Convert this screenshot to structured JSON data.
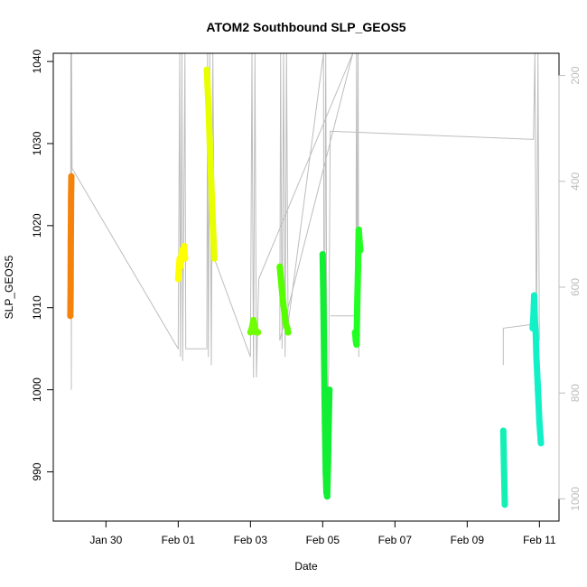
{
  "chart_data": {
    "type": "scatter",
    "title": "ATOM2 Southbound SLP_GEOS5",
    "xlabel": "Date",
    "ylabel": "SLP_GEOS5",
    "x_unit": "day",
    "xlim": [
      "2017-01-28T13:00",
      "2017-02-11T13:00"
    ],
    "ylim": [
      984,
      1041
    ],
    "x_ticks": [
      {
        "x": "2017-01-30",
        "label": "Jan 30"
      },
      {
        "x": "2017-02-01",
        "label": "Feb 01"
      },
      {
        "x": "2017-02-03",
        "label": "Feb 03"
      },
      {
        "x": "2017-02-05",
        "label": "Feb 05"
      },
      {
        "x": "2017-02-07",
        "label": "Feb 07"
      },
      {
        "x": "2017-02-09",
        "label": "Feb 09"
      },
      {
        "x": "2017-02-11",
        "label": "Feb 11"
      }
    ],
    "y_ticks": [
      990,
      1000,
      1010,
      1020,
      1030,
      1040
    ],
    "right_axis": {
      "color": "#bdbdbd",
      "ylim": [
        1042,
        158
      ],
      "ticks": [
        200,
        400,
        600,
        800,
        1000
      ]
    },
    "background_line": {
      "color": "#bdbdbd",
      "points": [
        [
          "2017-01-29T00:35",
          1010
        ],
        [
          "2017-01-29T00:40",
          1041
        ],
        [
          "2017-01-29T00:50",
          1036
        ],
        [
          "2017-01-29T01:00",
          1000
        ],
        [
          "2017-01-29T01:10",
          1041
        ],
        [
          "2017-01-29T01:30",
          1027
        ],
        [
          "2017-02-01T00:00",
          1005
        ],
        [
          "2017-02-01T01:00",
          1041
        ],
        [
          "2017-02-01T01:30",
          1004
        ],
        [
          "2017-02-01T02:30",
          1041
        ],
        [
          "2017-02-01T03:00",
          1003.5
        ],
        [
          "2017-02-01T04:30",
          1041
        ],
        [
          "2017-02-01T05:00",
          1005
        ],
        [
          "2017-02-01T19:00",
          1005
        ],
        [
          "2017-02-01T19:30",
          1041
        ],
        [
          "2017-02-01T20:00",
          1004
        ],
        [
          "2017-02-01T21:00",
          1041
        ],
        [
          "2017-02-01T22:00",
          1003
        ],
        [
          "2017-02-01T23:00",
          1041
        ],
        [
          "2017-02-02T00:00",
          1016
        ],
        [
          "2017-02-03T00:00",
          1004
        ],
        [
          "2017-02-03T01:00",
          1041
        ],
        [
          "2017-02-03T02:00",
          1001.5
        ],
        [
          "2017-02-03T03:00",
          1041
        ],
        [
          "2017-02-03T04:00",
          1001.5
        ],
        [
          "2017-02-03T05:30",
          1013.5
        ],
        [
          "2017-02-05T20:00",
          1041
        ],
        [
          "2017-02-03T19:30",
          1006
        ],
        [
          "2017-02-03T20:00",
          1041
        ],
        [
          "2017-02-03T21:00",
          1005
        ],
        [
          "2017-02-03T22:00",
          1041
        ],
        [
          "2017-02-03T23:00",
          1004
        ],
        [
          "2017-02-04T00:00",
          1041
        ],
        [
          "2017-02-04T01:00",
          1008
        ],
        [
          "2017-02-05T00:30",
          1041
        ],
        [
          "2017-02-05T01:00",
          995
        ],
        [
          "2017-02-05T02:00",
          1041
        ],
        [
          "2017-02-05T03:00",
          993
        ],
        [
          "2017-02-05T04:00",
          1003
        ],
        [
          "2017-02-05T05:00",
          1031.5
        ],
        [
          "2017-02-10T20:00",
          1030.5
        ],
        [
          "2017-02-10T21:00",
          1041
        ],
        [
          "2017-02-10T22:00",
          1005
        ],
        [
          "2017-02-10T23:00",
          1041
        ],
        [
          "2017-02-11T00:00",
          1006
        ]
      ],
      "extra_segments": [
        [
          [
            "2017-02-05T05:00",
            1009
          ],
          [
            "2017-02-05T22:00",
            1009
          ],
          [
            "2017-02-05T22:30",
            1041
          ],
          [
            "2017-02-05T23:00",
            1006
          ],
          [
            "2017-02-05T23:30",
            1041
          ],
          [
            "2017-02-06T00:00",
            1004
          ]
        ],
        [
          [
            "2017-02-10T00:00",
            1003
          ],
          [
            "2017-02-10T00:00",
            1007.5
          ],
          [
            "2017-02-10T21:00",
            1008
          ]
        ]
      ]
    },
    "series": [
      {
        "color": "#f5820a",
        "points": [
          [
            "2017-01-29T00:20",
            1009
          ],
          [
            "2017-01-29T00:25",
            1010
          ],
          [
            "2017-01-29T00:30",
            1012
          ],
          [
            "2017-01-29T00:35",
            1015
          ],
          [
            "2017-01-29T00:40",
            1018
          ],
          [
            "2017-01-29T00:45",
            1021
          ],
          [
            "2017-01-29T00:50",
            1023.5
          ],
          [
            "2017-01-29T00:55",
            1025
          ],
          [
            "2017-01-29T01:00",
            1026
          ]
        ]
      },
      {
        "color": "#ffff00",
        "points": [
          [
            "2017-02-01T00:00",
            1013.5
          ],
          [
            "2017-02-01T00:30",
            1015
          ],
          [
            "2017-02-01T01:00",
            1016
          ],
          [
            "2017-02-01T01:30",
            1015
          ],
          [
            "2017-02-01T02:00",
            1016
          ],
          [
            "2017-02-01T02:30",
            1017
          ],
          [
            "2017-02-01T03:00",
            1016.5
          ],
          [
            "2017-02-01T03:30",
            1016
          ],
          [
            "2017-02-01T04:00",
            1017.5
          ],
          [
            "2017-02-01T04:30",
            1016
          ]
        ]
      },
      {
        "color": "#e8ff00",
        "points": [
          [
            "2017-02-01T19:00",
            1039
          ],
          [
            "2017-02-01T20:00",
            1035
          ],
          [
            "2017-02-01T21:00",
            1030
          ],
          [
            "2017-02-01T22:00",
            1025
          ],
          [
            "2017-02-01T23:00",
            1020
          ],
          [
            "2017-02-02T00:00",
            1016
          ]
        ]
      },
      {
        "color": "#6fff00",
        "points": [
          [
            "2017-02-03T00:00",
            1007
          ],
          [
            "2017-02-03T01:00",
            1007.5
          ],
          [
            "2017-02-03T02:00",
            1008.5
          ],
          [
            "2017-02-03T03:00",
            1007.5
          ],
          [
            "2017-02-03T04:00",
            1007
          ],
          [
            "2017-02-03T05:00",
            1007
          ]
        ]
      },
      {
        "color": "#55ff00",
        "points": [
          [
            "2017-02-03T19:30",
            1015
          ],
          [
            "2017-02-03T20:30",
            1013
          ],
          [
            "2017-02-03T21:30",
            1011
          ],
          [
            "2017-02-03T22:30",
            1009.5
          ],
          [
            "2017-02-03T23:30",
            1008
          ],
          [
            "2017-02-04T00:30",
            1007.5
          ],
          [
            "2017-02-04T01:00",
            1007
          ]
        ]
      },
      {
        "color": "#11ee33",
        "points": [
          [
            "2017-02-05T00:00",
            1016.5
          ],
          [
            "2017-02-05T00:30",
            1010
          ],
          [
            "2017-02-05T01:00",
            1003
          ],
          [
            "2017-02-05T01:30",
            996
          ],
          [
            "2017-02-05T02:00",
            990
          ],
          [
            "2017-02-05T02:30",
            987.5
          ],
          [
            "2017-02-05T03:00",
            987
          ],
          [
            "2017-02-05T03:30",
            991
          ],
          [
            "2017-02-05T04:00",
            996
          ],
          [
            "2017-02-05T04:30",
            1000
          ]
        ]
      },
      {
        "color": "#22ff22",
        "points": [
          [
            "2017-02-05T21:30",
            1007
          ],
          [
            "2017-02-05T22:00",
            1006
          ],
          [
            "2017-02-05T22:30",
            1005.5
          ],
          [
            "2017-02-05T23:00",
            1011
          ],
          [
            "2017-02-05T23:30",
            1015
          ],
          [
            "2017-02-05T23:45",
            1018
          ],
          [
            "2017-02-06T00:00",
            1019.5
          ],
          [
            "2017-02-06T00:30",
            1018
          ],
          [
            "2017-02-06T01:00",
            1017
          ]
        ]
      },
      {
        "color": "#14f0b4",
        "points": [
          [
            "2017-02-10T00:00",
            995
          ],
          [
            "2017-02-10T00:30",
            990
          ],
          [
            "2017-02-10T01:00",
            986
          ]
        ]
      },
      {
        "color": "#12f0c8",
        "points": [
          [
            "2017-02-10T19:30",
            1007.5
          ],
          [
            "2017-02-10T20:00",
            1009
          ],
          [
            "2017-02-10T20:30",
            1011.5
          ],
          [
            "2017-02-10T21:00",
            1008.5
          ],
          [
            "2017-02-10T21:30",
            1007
          ],
          [
            "2017-02-10T22:00",
            1004
          ],
          [
            "2017-02-10T23:00",
            1000
          ],
          [
            "2017-02-11T00:00",
            996
          ],
          [
            "2017-02-11T01:00",
            993.5
          ]
        ]
      }
    ]
  }
}
